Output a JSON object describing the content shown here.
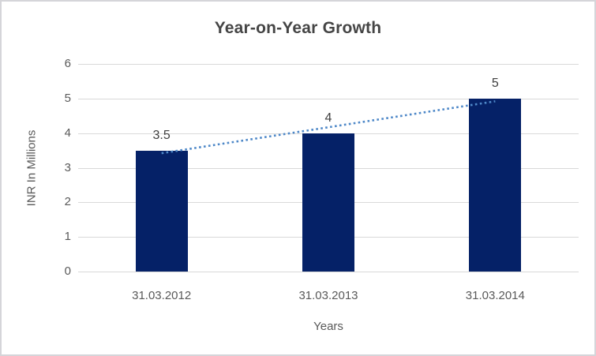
{
  "window": {
    "background_color": "#ffffff",
    "border_color": "#d5d5d9"
  },
  "chart_data": {
    "type": "bar",
    "title": "Year-on-Year Growth",
    "categories": [
      "31.03.2012",
      "31.03.2013",
      "31.03.2014"
    ],
    "values": [
      3.5,
      4,
      5
    ],
    "data_labels": [
      "3.5",
      "4",
      "5"
    ],
    "xlabel": "Years",
    "ylabel": "INR In Millions",
    "ylim": [
      0,
      6
    ],
    "yticks": [
      "0",
      "1",
      "2",
      "3",
      "4",
      "5",
      "6"
    ],
    "grid": true,
    "legend_position": "none",
    "bar_color": "#052167",
    "gridline_color": "#d9d9d9",
    "title_color": "#454545",
    "axis_label_color": "#595959",
    "data_label_color": "#3f3f3f",
    "trendline": {
      "type": "linear",
      "style": "dotted",
      "color": "#4e88c8",
      "start_value": 3.42,
      "end_value": 4.92
    }
  }
}
